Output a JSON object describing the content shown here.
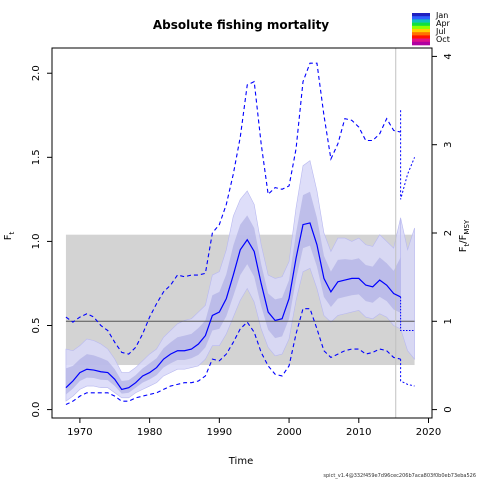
{
  "chart_data": {
    "type": "line",
    "title": "Absolute fishing mortality",
    "xlabel": "Time",
    "ylabel_left": "F",
    "ylabel_left_sub": "t",
    "ylabel_right": "F",
    "ylabel_right_sub": "t",
    "ylabel_right_den": "F",
    "ylabel_right_den_sub": "MSY",
    "xlim": [
      1966,
      2020.5
    ],
    "ylim": [
      -0.05,
      2.15
    ],
    "x_ticks": [
      1970,
      1980,
      1990,
      2000,
      2010,
      2020
    ],
    "y_ticks": [
      0.0,
      0.5,
      1.0,
      1.5,
      2.0
    ],
    "y_tick_labels": [
      "0.0",
      "0.5",
      "1.0",
      "1.5",
      "2.0"
    ],
    "right_ticks": [
      0,
      1,
      2,
      3,
      4
    ],
    "right_tick_labels": [
      "0",
      "1",
      "2",
      "3",
      "4"
    ],
    "fmsy": 0.525,
    "fmsy_band": {
      "x_start": 1968,
      "x_end": 2018,
      "lower": 0.265,
      "upper": 1.04
    },
    "prediction_line_x": 2015.3,
    "estimate": {
      "x": [
        1968,
        1969,
        1970,
        1971,
        1972,
        1973,
        1974,
        1975,
        1976,
        1977,
        1978,
        1979,
        1980,
        1981,
        1982,
        1983,
        1984,
        1985,
        1986,
        1987,
        1988,
        1989,
        1990,
        1991,
        1992,
        1993,
        1994,
        1995,
        1996,
        1997,
        1998,
        1999,
        2000,
        2001,
        2002,
        2003,
        2004,
        2005,
        2006,
        2007,
        2008,
        2009,
        2010,
        2011,
        2012,
        2013,
        2014,
        2015,
        2016
      ],
      "y": [
        0.13,
        0.17,
        0.22,
        0.24,
        0.235,
        0.225,
        0.22,
        0.18,
        0.12,
        0.13,
        0.16,
        0.2,
        0.22,
        0.25,
        0.3,
        0.33,
        0.35,
        0.35,
        0.36,
        0.39,
        0.44,
        0.56,
        0.58,
        0.66,
        0.8,
        0.95,
        1.01,
        0.94,
        0.75,
        0.58,
        0.53,
        0.54,
        0.66,
        0.9,
        1.1,
        1.11,
        0.98,
        0.78,
        0.7,
        0.76,
        0.77,
        0.78,
        0.78,
        0.74,
        0.73,
        0.77,
        0.74,
        0.69,
        0.67
      ]
    },
    "upper_ci": {
      "x": [
        1968,
        1969,
        1970,
        1971,
        1972,
        1973,
        1974,
        1975,
        1976,
        1977,
        1978,
        1979,
        1980,
        1981,
        1982,
        1983,
        1984,
        1985,
        1986,
        1987,
        1988,
        1989,
        1990,
        1991,
        1992,
        1993,
        1994,
        1995,
        1996,
        1997,
        1998,
        1999,
        2000,
        2001,
        2002,
        2003,
        2004,
        2005,
        2006,
        2007,
        2008,
        2009,
        2010,
        2011,
        2012,
        2013,
        2014,
        2015,
        2016
      ],
      "y": [
        0.55,
        0.52,
        0.55,
        0.57,
        0.55,
        0.5,
        0.47,
        0.4,
        0.34,
        0.33,
        0.37,
        0.45,
        0.55,
        0.63,
        0.7,
        0.74,
        0.8,
        0.79,
        0.8,
        0.8,
        0.81,
        1.05,
        1.1,
        1.22,
        1.4,
        1.62,
        1.93,
        1.95,
        1.58,
        1.28,
        1.32,
        1.31,
        1.33,
        1.55,
        1.95,
        2.06,
        2.06,
        1.75,
        1.49,
        1.58,
        1.73,
        1.72,
        1.68,
        1.6,
        1.6,
        1.64,
        1.73,
        1.66,
        1.65
      ]
    },
    "lower_ci": {
      "x": [
        1968,
        1969,
        1970,
        1971,
        1972,
        1973,
        1974,
        1975,
        1976,
        1977,
        1978,
        1979,
        1980,
        1981,
        1982,
        1983,
        1984,
        1985,
        1986,
        1987,
        1988,
        1989,
        1990,
        1991,
        1992,
        1993,
        1994,
        1995,
        1996,
        1997,
        1998,
        1999,
        2000,
        2001,
        2002,
        2003,
        2004,
        2005,
        2006,
        2007,
        2008,
        2009,
        2010,
        2011,
        2012,
        2013,
        2014,
        2015,
        2016
      ],
      "y": [
        0.03,
        0.05,
        0.08,
        0.1,
        0.1,
        0.1,
        0.1,
        0.08,
        0.05,
        0.05,
        0.07,
        0.08,
        0.09,
        0.1,
        0.12,
        0.14,
        0.15,
        0.16,
        0.16,
        0.17,
        0.2,
        0.3,
        0.29,
        0.33,
        0.4,
        0.48,
        0.52,
        0.46,
        0.34,
        0.26,
        0.21,
        0.2,
        0.26,
        0.45,
        0.6,
        0.6,
        0.48,
        0.35,
        0.31,
        0.33,
        0.35,
        0.36,
        0.36,
        0.33,
        0.34,
        0.36,
        0.35,
        0.31,
        0.3
      ]
    },
    "inner_ci_upper": {
      "x": [
        1968,
        1969,
        1970,
        1971,
        1972,
        1973,
        1974,
        1975,
        1976,
        1977,
        1978,
        1979,
        1980,
        1981,
        1982,
        1983,
        1984,
        1985,
        1986,
        1987,
        1988,
        1989,
        1990,
        1991,
        1992,
        1993,
        1994,
        1995,
        1996,
        1997,
        1998,
        1999,
        2000,
        2001,
        2002,
        2003,
        2004,
        2005,
        2006,
        2007,
        2008,
        2009,
        2010,
        2011,
        2012,
        2013,
        2014,
        2015,
        2016
      ],
      "y": [
        0.36,
        0.35,
        0.38,
        0.42,
        0.41,
        0.39,
        0.36,
        0.3,
        0.22,
        0.22,
        0.25,
        0.29,
        0.33,
        0.36,
        0.43,
        0.47,
        0.51,
        0.53,
        0.54,
        0.58,
        0.62,
        0.8,
        0.82,
        0.95,
        1.15,
        1.25,
        1.3,
        1.22,
        0.98,
        0.8,
        0.78,
        0.79,
        0.88,
        1.2,
        1.45,
        1.48,
        1.3,
        1.05,
        0.94,
        1.02,
        1.02,
        1.0,
        1.02,
        0.98,
        0.97,
        1.04,
        1.0,
        0.96,
        1.14
      ]
    },
    "inner_ci_lower": {
      "x": [
        1968,
        1969,
        1970,
        1971,
        1972,
        1973,
        1974,
        1975,
        1976,
        1977,
        1978,
        1979,
        1980,
        1981,
        1982,
        1983,
        1984,
        1985,
        1986,
        1987,
        1988,
        1989,
        1990,
        1991,
        1992,
        1993,
        1994,
        1995,
        1996,
        1997,
        1998,
        1999,
        2000,
        2001,
        2002,
        2003,
        2004,
        2005,
        2006,
        2007,
        2008,
        2009,
        2010,
        2011,
        2012,
        2013,
        2014,
        2015,
        2016
      ],
      "y": [
        0.05,
        0.08,
        0.12,
        0.14,
        0.14,
        0.13,
        0.13,
        0.1,
        0.07,
        0.07,
        0.1,
        0.12,
        0.14,
        0.16,
        0.2,
        0.22,
        0.24,
        0.24,
        0.25,
        0.26,
        0.3,
        0.38,
        0.38,
        0.45,
        0.55,
        0.65,
        0.72,
        0.64,
        0.48,
        0.37,
        0.32,
        0.33,
        0.42,
        0.65,
        0.82,
        0.84,
        0.72,
        0.56,
        0.52,
        0.56,
        0.57,
        0.58,
        0.59,
        0.55,
        0.54,
        0.57,
        0.55,
        0.5,
        0.48
      ]
    },
    "forecast_estimate": {
      "x": [
        2016,
        2016,
        2018
      ],
      "y": [
        0.67,
        0.47,
        0.47
      ]
    },
    "forecast_upper": {
      "x": [
        2016,
        2016,
        2017,
        2018
      ],
      "y": [
        1.78,
        1.25,
        1.4,
        1.5
      ]
    },
    "forecast_lower": {
      "x": [
        2016,
        2016,
        2017,
        2018
      ],
      "y": [
        0.3,
        0.17,
        0.15,
        0.14
      ]
    },
    "forecast_band": {
      "x": [
        2016,
        2017,
        2018
      ],
      "upper": [
        1.14,
        0.95,
        1.08
      ],
      "lower": [
        0.48,
        0.35,
        0.3
      ]
    },
    "legend": {
      "labels": [
        "Jan",
        "Apr",
        "Jul",
        "Oct"
      ],
      "colors": [
        "#2020c0",
        "#3060ff",
        "#10c0c0",
        "#10e040",
        "#90ff00",
        "#ffd000",
        "#ff7000",
        "#ff1000",
        "#e0108a",
        "#b000a0"
      ]
    },
    "footer": "spict_v1.4@332f459e7d96cec206b7aca803f0b0eb73eba526",
    "colors": {
      "estimate": "#0000ff",
      "ci_band": "#d8d8f8",
      "inner_band": "#b5b5e6",
      "fmsy_band": "#d3d3d3",
      "fmsy_line": "#555555",
      "prediction_line": "#c0c0c0"
    }
  }
}
